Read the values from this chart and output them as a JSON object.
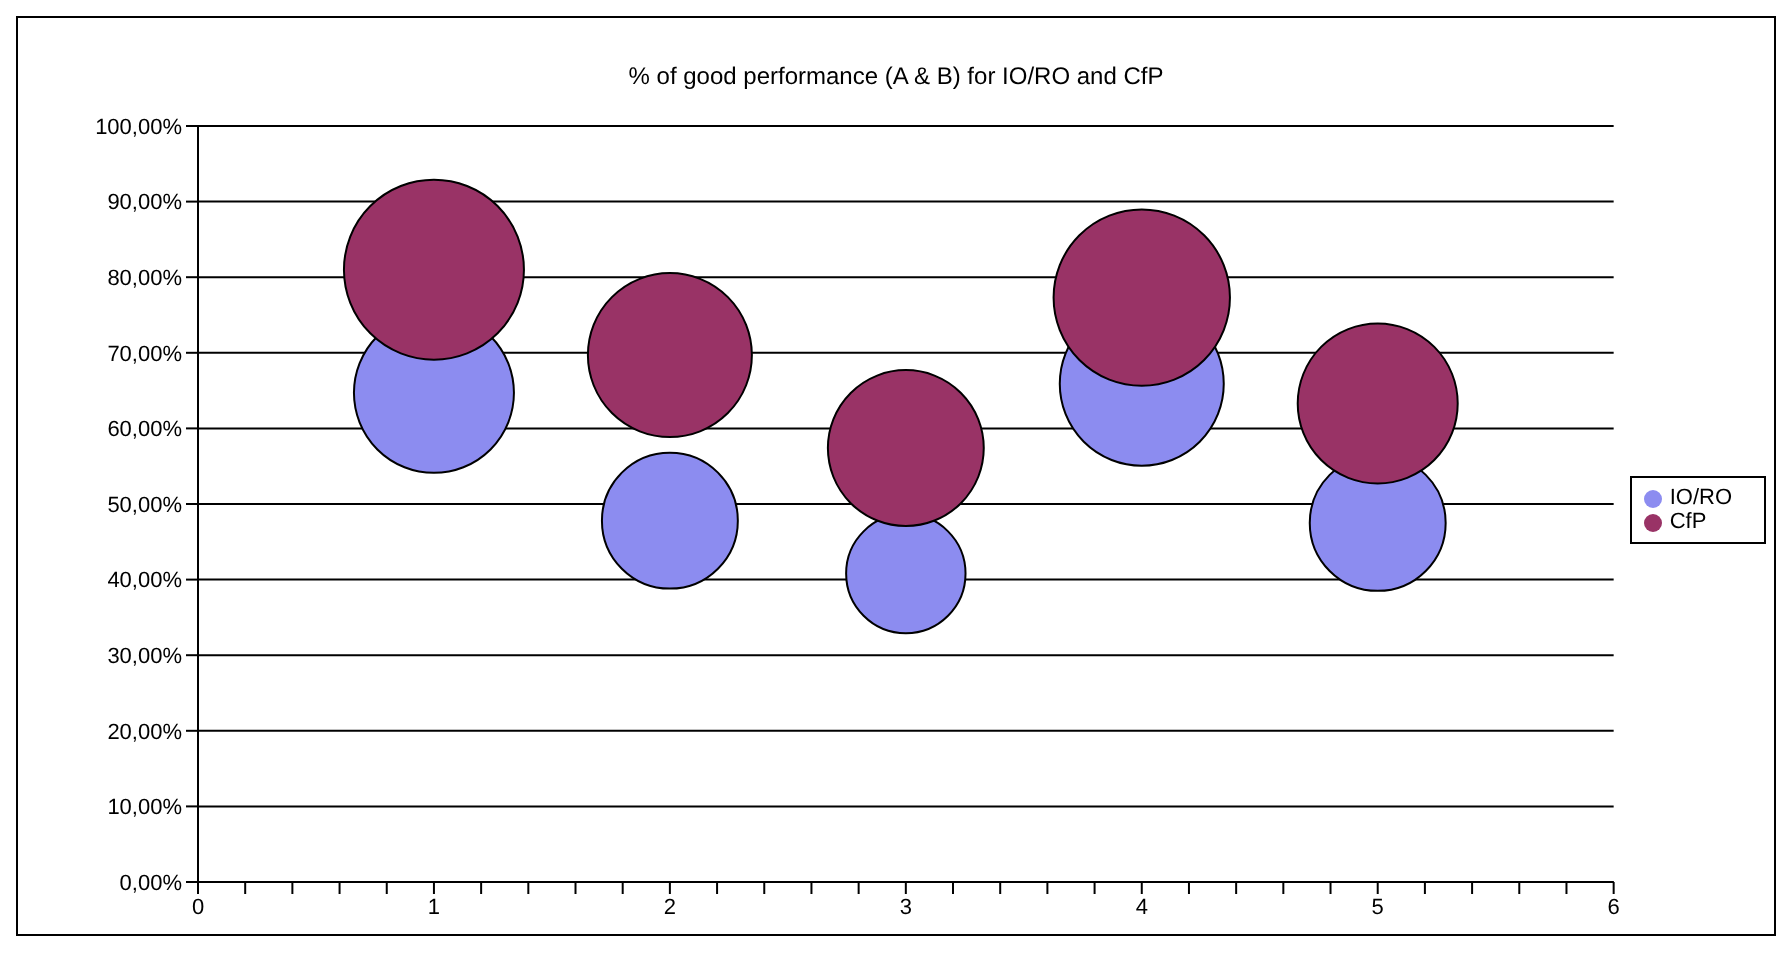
{
  "chart_data": {
    "type": "bubble",
    "title": "% of good performance (A & B) for IO/RO and CfP",
    "x": [
      1,
      2,
      3,
      4,
      5
    ],
    "series": [
      {
        "name": "IO/RO",
        "color": "#8c8cf0",
        "values": [
          64.7,
          47.8,
          40.8,
          65.9,
          47.5
        ],
        "sizes": [
          0.79,
          0.57,
          0.44,
          0.83,
          0.57
        ]
      },
      {
        "name": "CfP",
        "color": "#993366",
        "values": [
          81,
          69.7,
          57.4,
          77.3,
          63.3
        ],
        "sizes": [
          1,
          0.83,
          0.75,
          0.96,
          0.79
        ]
      }
    ],
    "xlim": [
      0,
      6
    ],
    "xticks": [
      0,
      {
        "value": 0.2,
        "label": null
      },
      {
        "value": 0.4,
        "label": null
      },
      {
        "value": 0.6,
        "label": null
      },
      {
        "value": 0.8,
        "label": null
      },
      1,
      {
        "value": 1.2,
        "label": null
      },
      {
        "value": 1.4,
        "label": null
      },
      {
        "value": 1.6,
        "label": null
      },
      {
        "value": 1.8,
        "label": null
      },
      2,
      {
        "value": 2.2,
        "label": null
      },
      {
        "value": 2.4,
        "label": null
      },
      {
        "value": 2.6,
        "label": null
      },
      {
        "value": 2.8,
        "label": null
      },
      3,
      {
        "value": 3.2,
        "label": null
      },
      {
        "value": 3.4,
        "label": null
      },
      {
        "value": 3.6,
        "label": null
      },
      {
        "value": 3.8,
        "label": null
      },
      4,
      {
        "value": 4.2,
        "label": null
      },
      {
        "value": 4.4,
        "label": null
      },
      {
        "value": 4.6,
        "label": null
      },
      {
        "value": 4.8,
        "label": null
      },
      5,
      {
        "value": 5.2,
        "label": null
      },
      {
        "value": 5.4,
        "label": null
      },
      {
        "value": 5.6,
        "label": null
      },
      {
        "value": 5.8,
        "label": null
      },
      6
    ],
    "ylim": [
      0,
      100
    ],
    "yticks": [
      {
        "value": 0,
        "label": "0,00%"
      },
      {
        "value": 10,
        "label": "10,00%"
      },
      {
        "value": 20,
        "label": "20,00%"
      },
      {
        "value": 30,
        "label": "30,00%"
      },
      {
        "value": 40,
        "label": "40,00%"
      },
      {
        "value": 50,
        "label": "50,00%"
      },
      {
        "value": 60,
        "label": "60,00%"
      },
      {
        "value": 70,
        "label": "70,00%"
      },
      {
        "value": 80,
        "label": "80,00%"
      },
      {
        "value": 90,
        "label": "90,00%"
      },
      {
        "value": 100,
        "label": "100,00%"
      }
    ],
    "grid": "y",
    "legend": "right"
  }
}
